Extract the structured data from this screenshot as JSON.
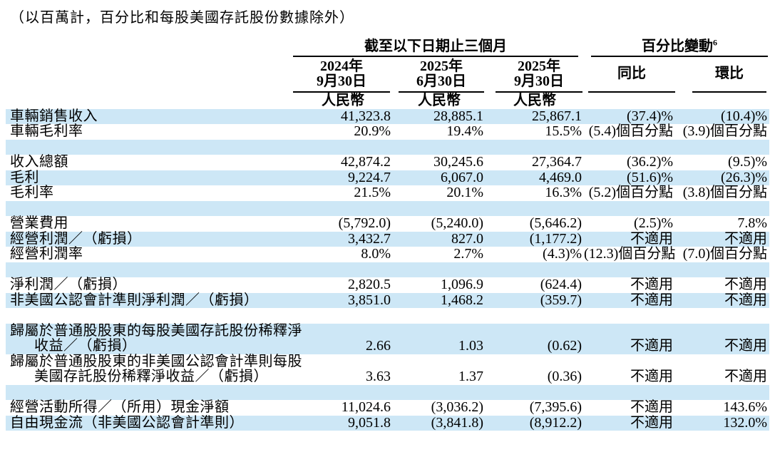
{
  "note": "（以百萬計，百分比和每股美國存託股份數據除外）",
  "colors": {
    "row_shade": "#cde7f6"
  },
  "table": {
    "header": {
      "group1": "截至以下日期止三個月",
      "group2": "百分比變動",
      "group2_sup": "6",
      "date_cols": [
        {
          "line1": "2024年",
          "line2": "9月30日",
          "currency": "人民幣"
        },
        {
          "line1": "2025年",
          "line2": "6月30日",
          "currency": "人民幣"
        },
        {
          "line1": "2025年",
          "line2": "9月30日",
          "currency": "人民幣"
        }
      ],
      "change_cols": [
        "同比",
        "環比"
      ]
    },
    "rows": [
      {
        "type": "data",
        "shade": true,
        "label": "車輛銷售收入",
        "values": [
          "41,323.8",
          "28,885.1",
          "25,867.1",
          "(37.4)%",
          "(10.4)%"
        ]
      },
      {
        "type": "data",
        "shade": false,
        "label": "車輛毛利率",
        "values": [
          "20.9%",
          "19.4%",
          "15.5%",
          "(5.4)個百分點",
          "(3.9)個百分點"
        ]
      },
      {
        "type": "spacer",
        "shade": true
      },
      {
        "type": "data",
        "shade": false,
        "label": "收入總額",
        "values": [
          "42,874.2",
          "30,245.6",
          "27,364.7",
          "(36.2)%",
          "(9.5)%"
        ]
      },
      {
        "type": "data",
        "shade": true,
        "label": "毛利",
        "values": [
          "9,224.7",
          "6,067.0",
          "4,469.0",
          "(51.6)%",
          "(26.3)%"
        ]
      },
      {
        "type": "data",
        "shade": false,
        "label": "毛利率",
        "values": [
          "21.5%",
          "20.1%",
          "16.3%",
          "(5.2)個百分點",
          "(3.8)個百分點"
        ]
      },
      {
        "type": "spacer",
        "shade": true
      },
      {
        "type": "data",
        "shade": false,
        "label": "營業費用",
        "values": [
          "(5,792.0)",
          "(5,240.0)",
          "(5,646.2)",
          "(2.5)%",
          "7.8%"
        ]
      },
      {
        "type": "data",
        "shade": true,
        "label": "經營利潤／（虧損）",
        "values": [
          "3,432.7",
          "827.0",
          "(1,177.2)",
          "不適用",
          "不適用"
        ]
      },
      {
        "type": "data",
        "shade": false,
        "label": "經營利潤率",
        "values": [
          "8.0%",
          "2.7%",
          "(4.3)%",
          "(12.3)個百分點",
          "(7.0)個百分點"
        ]
      },
      {
        "type": "spacer",
        "shade": true
      },
      {
        "type": "data",
        "shade": false,
        "label": "淨利潤／（虧損）",
        "values": [
          "2,820.5",
          "1,096.9",
          "(624.4)",
          "不適用",
          "不適用"
        ]
      },
      {
        "type": "data",
        "shade": true,
        "label": "非美國公認會計準則淨利潤／（虧損）",
        "values": [
          "3,851.0",
          "1,468.2",
          "(359.7)",
          "不適用",
          "不適用"
        ]
      },
      {
        "type": "spacer",
        "shade": false
      },
      {
        "type": "data",
        "shade": true,
        "label": "歸屬於普通股股東的每股美國存託股份稀釋淨",
        "label2": "收益／（虧損）",
        "values": [
          "2.66",
          "1.03",
          "(0.62)",
          "不適用",
          "不適用"
        ]
      },
      {
        "type": "data",
        "shade": false,
        "label": "歸屬於普通股股東的非美國公認會計準則每股",
        "label2": "美國存託股份稀釋淨收益／（虧損）",
        "values": [
          "3.63",
          "1.37",
          "(0.36)",
          "不適用",
          "不適用"
        ]
      },
      {
        "type": "spacer",
        "shade": true
      },
      {
        "type": "data",
        "shade": false,
        "label": "經營活動所得／（所用）現金淨額",
        "values": [
          "11,024.6",
          "(3,036.2)",
          "(7,395.6)",
          "不適用",
          "143.6%"
        ]
      },
      {
        "type": "data",
        "shade": true,
        "label": "自由現金流（非美國公認會計準則）",
        "values": [
          "9,051.8",
          "(3,841.8)",
          "(8,912.2)",
          "不適用",
          "132.0%"
        ]
      }
    ]
  }
}
